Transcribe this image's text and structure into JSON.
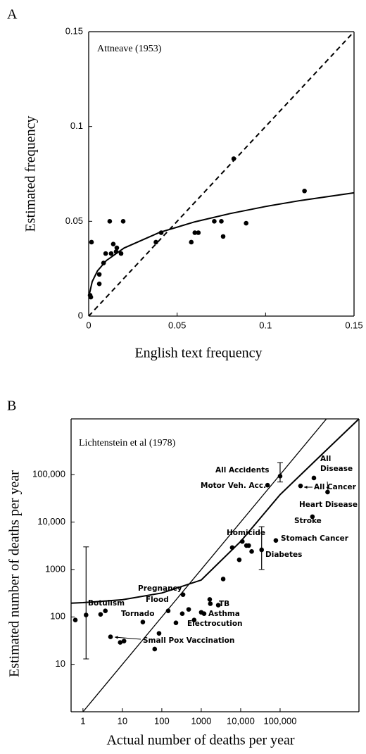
{
  "chart_data": [
    {
      "type": "scatter",
      "panel_label": "A",
      "annotation": "Attneave (1953)",
      "xlabel": "English text frequency",
      "ylabel": "Estimated frequency",
      "color": "#000000",
      "x": [
        0.0016,
        0.0008,
        0.0012,
        0.006,
        0.006,
        0.0084,
        0.0096,
        0.0119,
        0.0127,
        0.0139,
        0.0155,
        0.0159,
        0.0183,
        0.0195,
        0.038,
        0.041,
        0.058,
        0.06,
        0.062,
        0.071,
        0.075,
        0.076,
        0.082,
        0.089,
        0.122
      ],
      "values": [
        0.039,
        0.011,
        0.01,
        0.022,
        0.017,
        0.028,
        0.033,
        0.05,
        0.033,
        0.038,
        0.034,
        0.036,
        0.033,
        0.05,
        0.039,
        0.044,
        0.039,
        0.044,
        0.044,
        0.05,
        0.05,
        0.042,
        0.083,
        0.049,
        0.066
      ],
      "fit_curve": {
        "x": [
          0.0005,
          0.002,
          0.005,
          0.01,
          0.02,
          0.04,
          0.06,
          0.08,
          0.1,
          0.12,
          0.15
        ],
        "values": [
          0.0121,
          0.0182,
          0.0239,
          0.0293,
          0.0359,
          0.0441,
          0.0497,
          0.0541,
          0.0578,
          0.061,
          0.065
        ]
      },
      "reference_line": {
        "x": [
          0,
          0.15
        ],
        "values": [
          0,
          0.15
        ],
        "dashed": true
      },
      "xlim": [
        0,
        0.15
      ],
      "ylim": [
        0,
        0.15
      ],
      "xticks": [
        0,
        0.05,
        0.1,
        0.15
      ],
      "yticks": [
        0,
        0.05,
        0.1,
        0.15
      ]
    },
    {
      "type": "scatter",
      "panel_label": "B",
      "annotation": "Lichtenstein et al (1978)",
      "xlabel": "Actual number of deaths per year",
      "ylabel": "Estimated number of deaths per year",
      "color": "#000000",
      "log_scale": true,
      "x": [
        0.64,
        1.2,
        2.8,
        3.7,
        5.0,
        8.8,
        11,
        33,
        66,
        85,
        145,
        228,
        330,
        345,
        480,
        660,
        1000,
        1180,
        1640,
        1700,
        2700,
        3600,
        6100,
        9200,
        11000,
        14000,
        16000,
        19000,
        34000,
        78000,
        48000,
        100000,
        330000,
        660000,
        720000,
        1600000
      ],
      "values": [
        86,
        110,
        113,
        134,
        38,
        29,
        31,
        78,
        21,
        45,
        134,
        75,
        117,
        295,
        144,
        86,
        125,
        117,
        234,
        190,
        177,
        630,
        2900,
        1600,
        3900,
        3200,
        3200,
        2400,
        2600,
        4100,
        60000,
        93000,
        58000,
        13000,
        85000,
        43000
      ],
      "error_bars": [
        {
          "x": 1.2,
          "low": 13,
          "high": 3000
        },
        {
          "x": 100000,
          "low": 70000,
          "high": 180000
        },
        {
          "x": 34000,
          "low": 1000,
          "high": 8000
        }
      ],
      "annotations": [
        "Botulism",
        "Tornado",
        "Flood",
        "Pregnancy",
        "TB",
        "Asthma",
        "Electrocution",
        "Small Pox Vaccination",
        "Homicide",
        "Diabetes",
        "Stomach Cancer",
        "Stroke",
        "Heart Disease",
        "All Cancer",
        "All Disease",
        "Motor Veh. Acc.",
        "All Accidents"
      ],
      "fit_curve": {
        "x": [
          0.5,
          1,
          10,
          100,
          1000,
          10000,
          100000,
          1000000,
          10000000
        ],
        "values": [
          195,
          200,
          230,
          320,
          600,
          3900,
          38000,
          240000,
          1500000
        ]
      },
      "reference_line": {
        "x": [
          1,
          1500000
        ],
        "values": [
          1,
          1500000
        ],
        "dashed": false
      },
      "xlim": [
        0.5,
        10000000
      ],
      "ylim": [
        1,
        1500000
      ],
      "xticks": [
        1,
        10,
        100,
        1000,
        {
          "value": 10000,
          "label": "10,000"
        },
        {
          "value": 100000,
          "label": "100,000"
        }
      ],
      "yticks": [
        10,
        100,
        1000,
        {
          "value": 10000,
          "label": "10,000"
        },
        {
          "value": 100000,
          "label": "100,000"
        }
      ]
    }
  ]
}
